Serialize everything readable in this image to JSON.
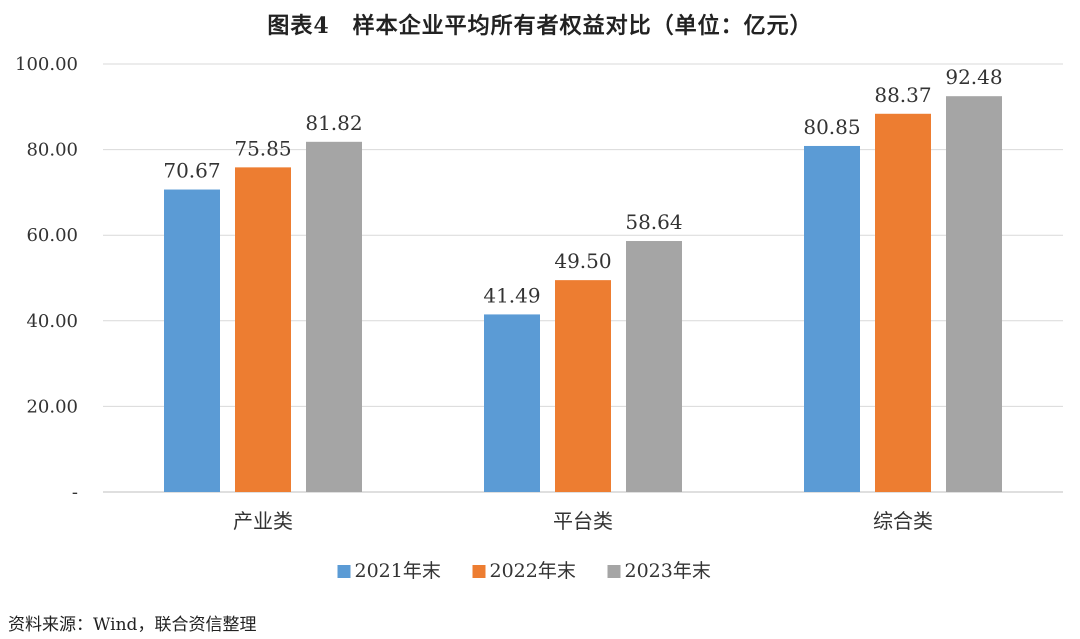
{
  "title": "图表4　样本企业平均所有者权益对比（单位：亿元）",
  "source": "资料来源：Wind，联合资信整理",
  "chart_data": {
    "type": "bar",
    "categories": [
      "产业类",
      "平台类",
      "综合类"
    ],
    "series": [
      {
        "name": "2021年末",
        "color": "#5b9bd5",
        "values": [
          70.67,
          41.49,
          80.85
        ]
      },
      {
        "name": "2022年末",
        "color": "#ed7d31",
        "values": [
          75.85,
          49.5,
          88.37
        ]
      },
      {
        "name": "2023年末",
        "color": "#a5a5a5",
        "values": [
          81.82,
          58.64,
          92.48
        ]
      }
    ],
    "y_ticks": [
      "-",
      "20.00",
      "40.00",
      "60.00",
      "80.00",
      "100.00"
    ],
    "ylim": [
      0,
      100
    ],
    "grid": true,
    "legend_position": "bottom"
  }
}
